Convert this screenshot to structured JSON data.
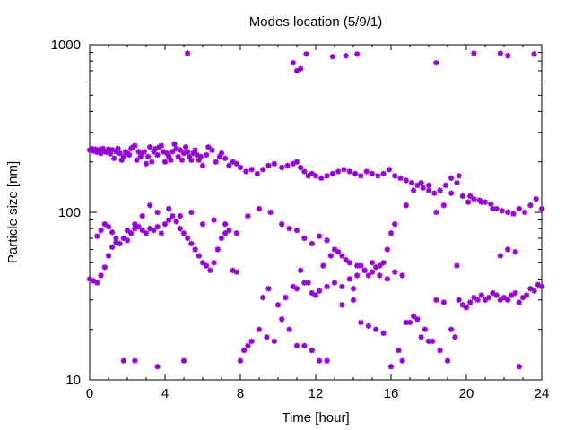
{
  "chart_data": {
    "type": "scatter",
    "title": "Modes location (5/9/1)",
    "xlabel": "Time [hour]",
    "ylabel": "Particle size [nm]",
    "xlim": [
      0,
      24
    ],
    "ylim": [
      10,
      1000
    ],
    "y_scale": "log",
    "x_ticks": [
      0,
      4,
      8,
      12,
      16,
      20,
      24
    ],
    "x_tick_labels": [
      "0",
      "4",
      "8",
      "12",
      "16",
      "20",
      "24"
    ],
    "y_ticks": [
      10,
      100,
      1000
    ],
    "y_tick_labels": [
      "10",
      "100",
      "1000"
    ],
    "grid": false,
    "legend": "none",
    "marker_color": "#9400d3",
    "marker": "asterisk",
    "series": [
      {
        "name": "",
        "points": [
          [
            0.0,
            235
          ],
          [
            0.1,
            240
          ],
          [
            0.2,
            232
          ],
          [
            0.3,
            238
          ],
          [
            0.4,
            228
          ],
          [
            0.5,
            236
          ],
          [
            0.6,
            225
          ],
          [
            0.7,
            240
          ],
          [
            0.8,
            232
          ],
          [
            0.9,
            228
          ],
          [
            1.0,
            238
          ],
          [
            1.1,
            224
          ],
          [
            1.2,
            236
          ],
          [
            1.3,
            210
          ],
          [
            1.4,
            230
          ],
          [
            1.5,
            240
          ],
          [
            1.6,
            225
          ],
          [
            1.7,
            205
          ],
          [
            1.8,
            215
          ],
          [
            1.9,
            230
          ],
          [
            2.0,
            225
          ],
          [
            2.1,
            220
          ],
          [
            2.2,
            240
          ],
          [
            2.3,
            245
          ],
          [
            2.4,
            250
          ],
          [
            2.5,
            205
          ],
          [
            2.6,
            230
          ],
          [
            2.7,
            215
          ],
          [
            2.8,
            225
          ],
          [
            2.9,
            230
          ],
          [
            3.0,
            195
          ],
          [
            3.1,
            215
          ],
          [
            3.2,
            245
          ],
          [
            3.3,
            200
          ],
          [
            3.4,
            230
          ],
          [
            3.5,
            240
          ],
          [
            3.6,
            220
          ],
          [
            3.7,
            245
          ],
          [
            3.8,
            250
          ],
          [
            3.9,
            230
          ],
          [
            4.0,
            200
          ],
          [
            4.1,
            225
          ],
          [
            4.2,
            215
          ],
          [
            4.3,
            205
          ],
          [
            4.4,
            230
          ],
          [
            4.5,
            255
          ],
          [
            4.6,
            240
          ],
          [
            4.7,
            215
          ],
          [
            4.8,
            235
          ],
          [
            4.9,
            205
          ],
          [
            5.0,
            225
          ],
          [
            5.1,
            245
          ],
          [
            5.2,
            230
          ],
          [
            5.3,
            215
          ],
          [
            5.4,
            205
          ],
          [
            5.5,
            225
          ],
          [
            5.6,
            235
          ],
          [
            5.7,
            220
          ],
          [
            5.8,
            205
          ],
          [
            5.9,
            215
          ],
          [
            6.0,
            190
          ],
          [
            6.2,
            220
          ],
          [
            6.3,
            245
          ],
          [
            6.5,
            235
          ],
          [
            6.7,
            200
          ],
          [
            6.9,
            215
          ],
          [
            7.0,
            225
          ],
          [
            7.2,
            210
          ],
          [
            7.4,
            190
          ],
          [
            7.6,
            200
          ],
          [
            7.8,
            195
          ],
          [
            8.0,
            185
          ],
          [
            8.3,
            175
          ],
          [
            8.6,
            180
          ],
          [
            8.9,
            170
          ],
          [
            9.2,
            180
          ],
          [
            9.5,
            190
          ],
          [
            9.8,
            195
          ],
          [
            10.2,
            185
          ],
          [
            10.5,
            190
          ],
          [
            10.8,
            195
          ],
          [
            11.0,
            200
          ],
          [
            11.2,
            185
          ],
          [
            11.4,
            175
          ],
          [
            11.6,
            165
          ],
          [
            11.8,
            170
          ],
          [
            12.0,
            165
          ],
          [
            12.3,
            160
          ],
          [
            12.6,
            165
          ],
          [
            12.9,
            170
          ],
          [
            13.2,
            175
          ],
          [
            13.5,
            180
          ],
          [
            13.8,
            175
          ],
          [
            14.1,
            170
          ],
          [
            14.4,
            165
          ],
          [
            14.7,
            175
          ],
          [
            15.0,
            170
          ],
          [
            15.3,
            165
          ],
          [
            15.6,
            170
          ],
          [
            15.9,
            180
          ],
          [
            16.2,
            165
          ],
          [
            16.5,
            160
          ],
          [
            16.8,
            155
          ],
          [
            17.1,
            150
          ],
          [
            17.4,
            145
          ],
          [
            17.7,
            140
          ],
          [
            18.0,
            135
          ],
          [
            18.3,
            130
          ],
          [
            18.6,
            135
          ],
          [
            18.9,
            145
          ],
          [
            19.2,
            160
          ],
          [
            19.5,
            150
          ],
          [
            19.8,
            125
          ],
          [
            20.1,
            115
          ],
          [
            20.4,
            120
          ],
          [
            20.7,
            118
          ],
          [
            21.0,
            115
          ],
          [
            21.3,
            112
          ],
          [
            21.6,
            105
          ],
          [
            21.9,
            102
          ],
          [
            22.2,
            100
          ],
          [
            22.5,
            98
          ],
          [
            22.8,
            105
          ],
          [
            23.1,
            100
          ],
          [
            23.4,
            110
          ],
          [
            23.7,
            120
          ],
          [
            24.0,
            105
          ],
          [
            0.0,
            40
          ],
          [
            0.2,
            39
          ],
          [
            0.4,
            38
          ],
          [
            0.6,
            42
          ],
          [
            0.8,
            47
          ],
          [
            1.0,
            55
          ],
          [
            1.2,
            62
          ],
          [
            1.4,
            66
          ],
          [
            1.6,
            65
          ],
          [
            1.8,
            70
          ],
          [
            2.0,
            68
          ],
          [
            2.2,
            75
          ],
          [
            2.4,
            80
          ],
          [
            2.6,
            82
          ],
          [
            2.8,
            78
          ],
          [
            3.0,
            75
          ],
          [
            3.2,
            80
          ],
          [
            3.4,
            78
          ],
          [
            3.6,
            82
          ],
          [
            3.8,
            75
          ],
          [
            4.0,
            85
          ],
          [
            4.2,
            90
          ],
          [
            4.4,
            95
          ],
          [
            4.6,
            88
          ],
          [
            4.8,
            80
          ],
          [
            5.0,
            75
          ],
          [
            5.2,
            70
          ],
          [
            5.4,
            65
          ],
          [
            5.6,
            60
          ],
          [
            5.8,
            55
          ],
          [
            6.0,
            50
          ],
          [
            6.2,
            48
          ],
          [
            6.4,
            45
          ],
          [
            6.6,
            50
          ],
          [
            6.8,
            60
          ],
          [
            7.0,
            70
          ],
          [
            7.2,
            75
          ],
          [
            7.4,
            78
          ],
          [
            7.6,
            45
          ],
          [
            7.8,
            44
          ],
          [
            2.0,
            78
          ],
          [
            2.4,
            85
          ],
          [
            2.8,
            95
          ],
          [
            3.2,
            110
          ],
          [
            3.6,
            100
          ],
          [
            4.2,
            105
          ],
          [
            4.8,
            95
          ],
          [
            5.4,
            100
          ],
          [
            6.0,
            85
          ],
          [
            6.6,
            90
          ],
          [
            7.2,
            85
          ],
          [
            7.8,
            75
          ],
          [
            8.4,
            95
          ],
          [
            9.0,
            105
          ],
          [
            9.6,
            100
          ],
          [
            10.2,
            85
          ],
          [
            10.6,
            80
          ],
          [
            11.0,
            78
          ],
          [
            11.4,
            70
          ],
          [
            11.8,
            65
          ],
          [
            12.2,
            72
          ],
          [
            12.6,
            68
          ],
          [
            13.0,
            60
          ],
          [
            13.4,
            55
          ],
          [
            13.8,
            50
          ],
          [
            14.2,
            48
          ],
          [
            14.6,
            45
          ],
          [
            15.0,
            50
          ],
          [
            15.4,
            48
          ],
          [
            0.4,
            72
          ],
          [
            0.6,
            78
          ],
          [
            0.8,
            85
          ],
          [
            1.0,
            82
          ],
          [
            1.2,
            76
          ],
          [
            1.4,
            70
          ],
          [
            11.0,
            35
          ],
          [
            11.4,
            38
          ],
          [
            11.8,
            33
          ],
          [
            12.2,
            34
          ],
          [
            12.6,
            36
          ],
          [
            13.0,
            38
          ],
          [
            13.4,
            36
          ],
          [
            13.8,
            40
          ],
          [
            14.2,
            42
          ],
          [
            14.6,
            45
          ],
          [
            15.0,
            44
          ],
          [
            15.4,
            42
          ],
          [
            15.8,
            40
          ],
          [
            16.2,
            44
          ],
          [
            16.6,
            42
          ],
          [
            19.6,
            30
          ],
          [
            19.8,
            28
          ],
          [
            20.0,
            27
          ],
          [
            20.2,
            29
          ],
          [
            20.4,
            31
          ],
          [
            20.6,
            30
          ],
          [
            20.8,
            32
          ],
          [
            21.0,
            30
          ],
          [
            21.2,
            31
          ],
          [
            21.4,
            33
          ],
          [
            21.6,
            32
          ],
          [
            21.8,
            30
          ],
          [
            22.0,
            31
          ],
          [
            22.2,
            30
          ],
          [
            22.4,
            32
          ],
          [
            22.6,
            33
          ],
          [
            22.8,
            29
          ],
          [
            23.0,
            31
          ],
          [
            23.2,
            32
          ],
          [
            23.4,
            35
          ],
          [
            23.6,
            34
          ],
          [
            23.8,
            37
          ],
          [
            24.0,
            36
          ],
          [
            8.0,
            13
          ],
          [
            8.2,
            15
          ],
          [
            8.4,
            16
          ],
          [
            8.6,
            17
          ],
          [
            9.0,
            20
          ],
          [
            9.4,
            18
          ],
          [
            9.8,
            17
          ],
          [
            10.2,
            23
          ],
          [
            10.6,
            20
          ],
          [
            11.0,
            16
          ],
          [
            11.4,
            16
          ],
          [
            11.8,
            15
          ],
          [
            12.2,
            13
          ],
          [
            12.6,
            13
          ],
          [
            13.4,
            28
          ],
          [
            14.0,
            30
          ],
          [
            14.4,
            22
          ],
          [
            14.8,
            21
          ],
          [
            15.2,
            20
          ],
          [
            15.6,
            19
          ],
          [
            16.0,
            12
          ],
          [
            16.6,
            13
          ],
          [
            17.0,
            22
          ],
          [
            17.4,
            23
          ],
          [
            17.8,
            20
          ],
          [
            18.2,
            17
          ],
          [
            18.6,
            15
          ],
          [
            19.0,
            13
          ],
          [
            19.4,
            18
          ],
          [
            1.8,
            13
          ],
          [
            2.4,
            13
          ],
          [
            3.6,
            12
          ],
          [
            5.0,
            13
          ],
          [
            22.8,
            12
          ],
          [
            5.2,
            890
          ],
          [
            10.8,
            780
          ],
          [
            11.0,
            700
          ],
          [
            11.2,
            720
          ],
          [
            11.5,
            880
          ],
          [
            12.9,
            850
          ],
          [
            13.6,
            860
          ],
          [
            14.2,
            880
          ],
          [
            18.4,
            780
          ],
          [
            20.4,
            890
          ],
          [
            21.8,
            890
          ],
          [
            22.2,
            860
          ],
          [
            23.6,
            880
          ],
          [
            9.2,
            31
          ],
          [
            9.5,
            35
          ],
          [
            10.0,
            28
          ],
          [
            10.4,
            31
          ],
          [
            10.8,
            36
          ],
          [
            11.2,
            45
          ],
          [
            11.6,
            38
          ],
          [
            12.0,
            32
          ],
          [
            12.4,
            48
          ],
          [
            12.8,
            55
          ],
          [
            13.2,
            58
          ],
          [
            13.6,
            52
          ],
          [
            14.0,
            35
          ],
          [
            14.4,
            48
          ],
          [
            14.8,
            42
          ],
          [
            15.2,
            47
          ],
          [
            15.6,
            50
          ],
          [
            16.0,
            75
          ],
          [
            16.4,
            15
          ],
          [
            16.8,
            22
          ],
          [
            17.2,
            24
          ],
          [
            17.6,
            18
          ],
          [
            18.0,
            17
          ],
          [
            18.4,
            30
          ],
          [
            18.8,
            29
          ],
          [
            19.2,
            20
          ],
          [
            19.5,
            48
          ],
          [
            15.8,
            60
          ],
          [
            16.2,
            85
          ],
          [
            16.8,
            110
          ],
          [
            17.2,
            135
          ],
          [
            17.6,
            150
          ],
          [
            18.0,
            145
          ],
          [
            18.4,
            100
          ],
          [
            18.8,
            110
          ],
          [
            19.2,
            130
          ],
          [
            19.6,
            165
          ],
          [
            20.2,
            125
          ],
          [
            20.8,
            115
          ],
          [
            21.4,
            105
          ],
          [
            21.8,
            55
          ],
          [
            22.2,
            60
          ],
          [
            22.6,
            58
          ]
        ]
      }
    ]
  }
}
